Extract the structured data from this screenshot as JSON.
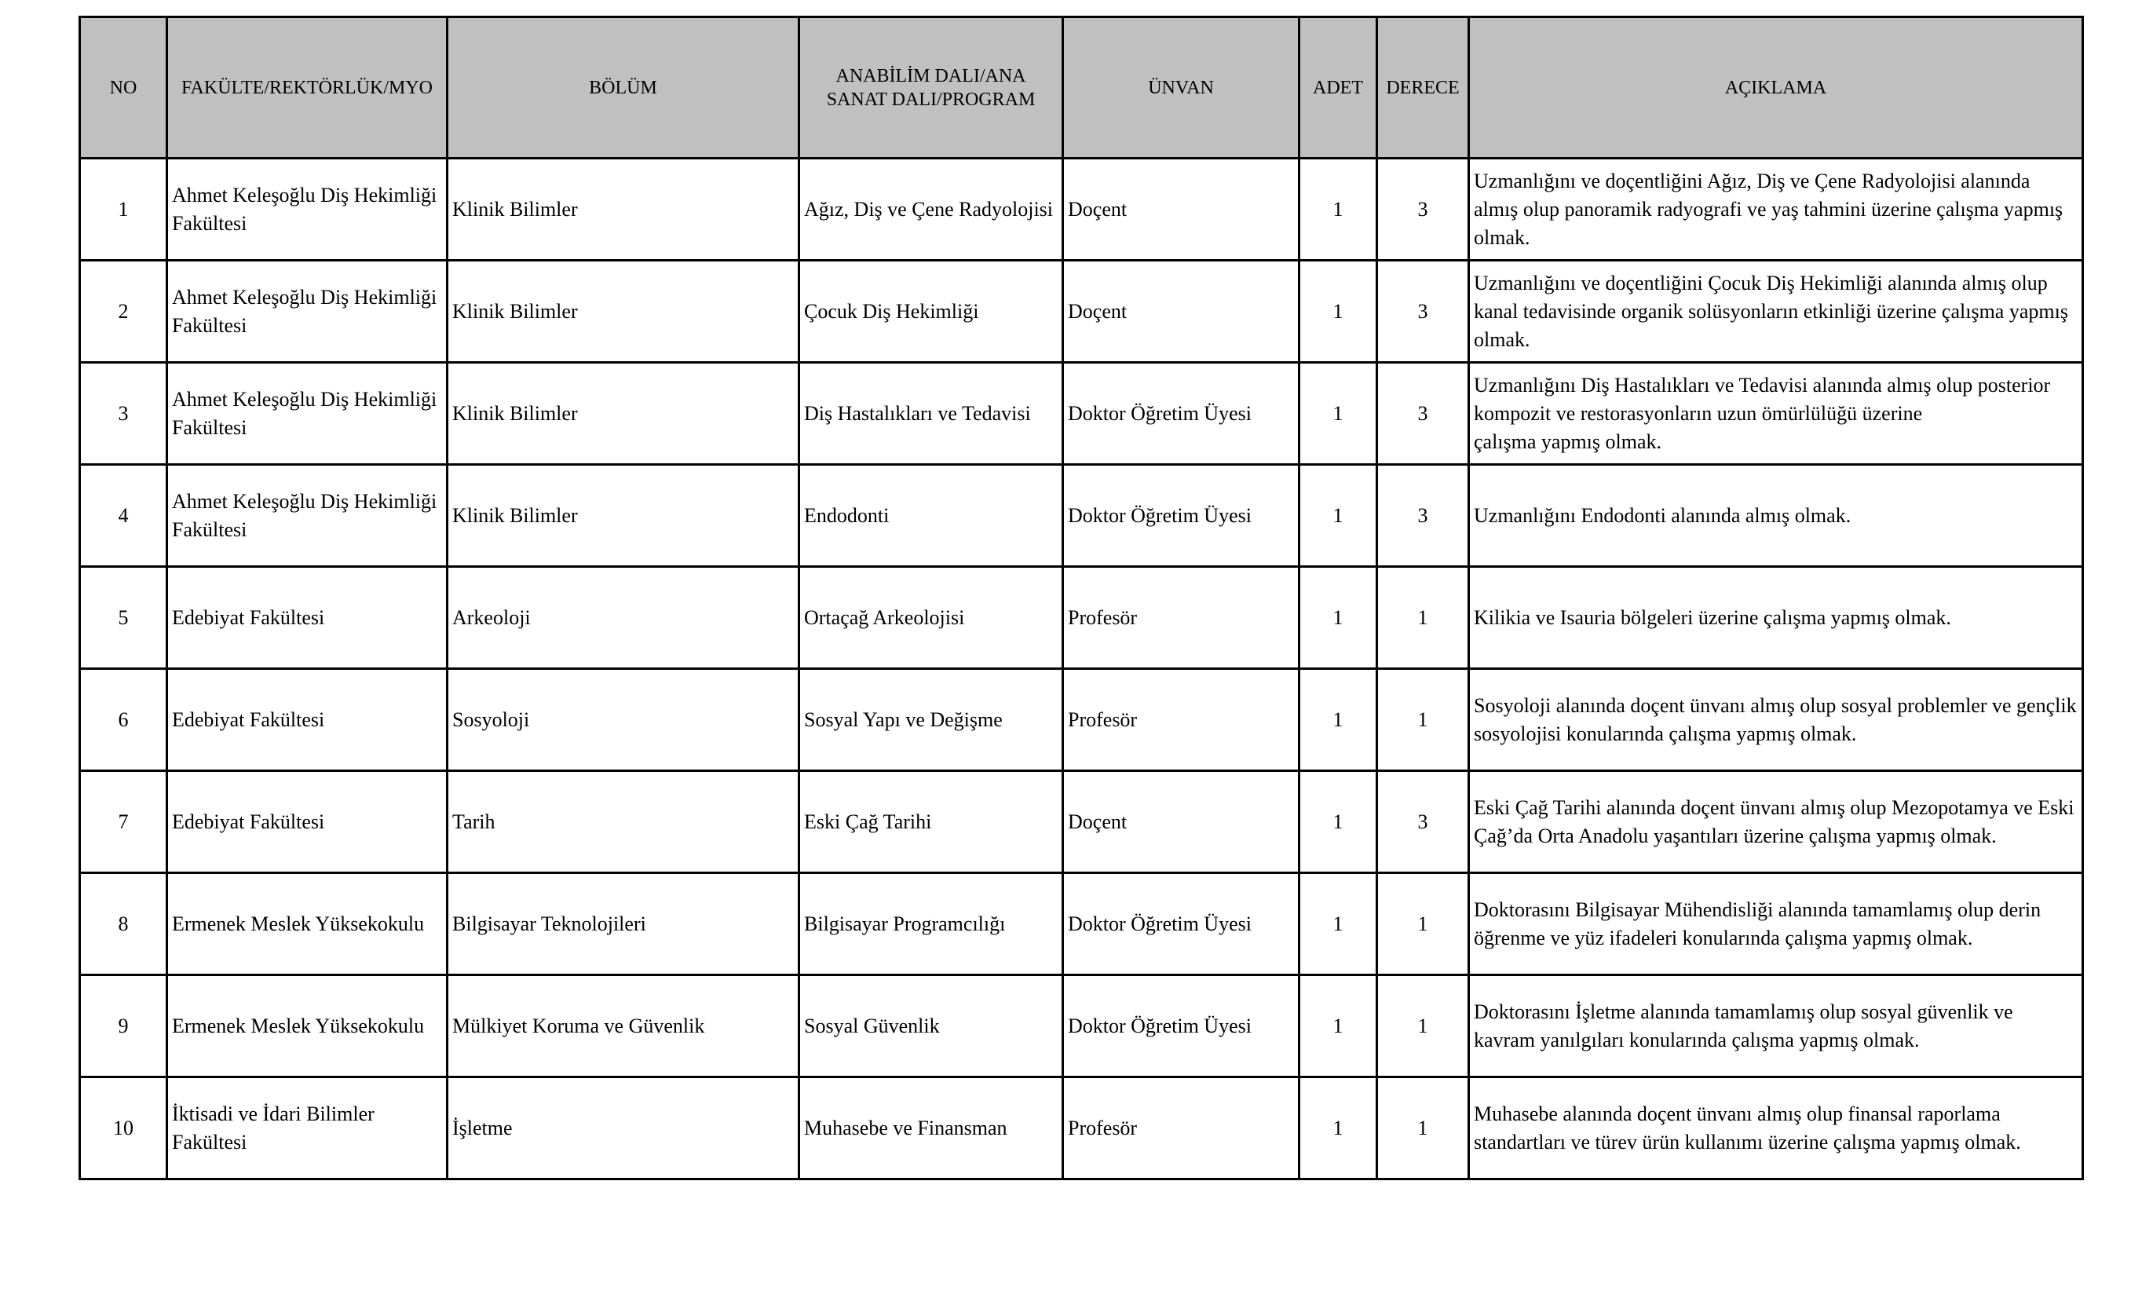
{
  "table": {
    "headers": [
      "NO",
      "FAKÜLTE/REKTÖRLÜK/MYO",
      "BÖLÜM",
      "ANABİLİM DALI/ANA SANAT DALI/PROGRAM",
      "ÜNVAN",
      "ADET",
      "DERECE",
      "AÇIKLAMA"
    ],
    "rows": [
      {
        "no": "1",
        "faculty": "Ahmet Keleşoğlu Diş Hekimliği Fakültesi",
        "department": "Klinik Bilimler",
        "program": "Ağız, Diş ve Çene Radyolojisi",
        "title": "Doçent",
        "count": "1",
        "degree": "3",
        "description": "Uzmanlığını ve doçentliğini Ağız, Diş ve Çene Radyolojisi alanında almış olup panoramik radyografi ve yaş tahmini üzerine çalışma yapmış olmak."
      },
      {
        "no": "2",
        "faculty": "Ahmet Keleşoğlu Diş Hekimliği Fakültesi",
        "department": "Klinik Bilimler",
        "program": "Çocuk Diş Hekimliği",
        "title": "Doçent",
        "count": "1",
        "degree": "3",
        "description": "Uzmanlığını ve doçentliğini Çocuk Diş Hekimliği alanında almış olup kanal tedavisinde organik solüsyonların etkinliği üzerine çalışma yapmış olmak."
      },
      {
        "no": "3",
        "faculty": "Ahmet Keleşoğlu Diş Hekimliği Fakültesi",
        "department": "Klinik Bilimler",
        "program": "Diş Hastalıkları ve Tedavisi",
        "title": "Doktor Öğretim Üyesi",
        "count": "1",
        "degree": "3",
        "description": "Uzmanlığını Diş Hastalıkları ve Tedavisi alanında almış olup posterior kompozit ve restorasyonların uzun ömürlülüğü üzerine\nçalışma yapmış olmak."
      },
      {
        "no": "4",
        "faculty": "Ahmet Keleşoğlu Diş Hekimliği Fakültesi",
        "department": "Klinik Bilimler",
        "program": "Endodonti",
        "title": "Doktor Öğretim Üyesi",
        "count": "1",
        "degree": "3",
        "description": "Uzmanlığını Endodonti alanında almış olmak."
      },
      {
        "no": "5",
        "faculty": "Edebiyat Fakültesi",
        "department": "Arkeoloji",
        "program": "Ortaçağ Arkeolojisi",
        "title": "Profesör",
        "count": "1",
        "degree": "1",
        "description": "Kilikia ve Isauria bölgeleri üzerine çalışma yapmış olmak."
      },
      {
        "no": "6",
        "faculty": "Edebiyat Fakültesi",
        "department": "Sosyoloji",
        "program": "Sosyal Yapı ve Değişme",
        "title": "Profesör",
        "count": "1",
        "degree": "1",
        "description": "Sosyoloji alanında doçent ünvanı almış olup sosyal problemler ve gençlik sosyolojisi konularında çalışma yapmış olmak."
      },
      {
        "no": "7",
        "faculty": "Edebiyat Fakültesi",
        "department": "Tarih",
        "program": "Eski Çağ Tarihi",
        "title": "Doçent",
        "count": "1",
        "degree": "3",
        "description": "Eski Çağ Tarihi alanında doçent ünvanı almış olup Mezopotamya ve Eski Çağ’da Orta Anadolu yaşantıları üzerine çalışma yapmış olmak."
      },
      {
        "no": "8",
        "faculty": "Ermenek Meslek Yüksekokulu",
        "department": "Bilgisayar Teknolojileri",
        "program": "Bilgisayar Programcılığı",
        "title": "Doktor Öğretim Üyesi",
        "count": "1",
        "degree": "1",
        "description": "Doktorasını Bilgisayar Mühendisliği alanında tamamlamış olup derin öğrenme ve yüz ifadeleri konularında çalışma yapmış olmak."
      },
      {
        "no": "9",
        "faculty": "Ermenek Meslek Yüksekokulu",
        "department": "Mülkiyet Koruma ve Güvenlik",
        "program": "Sosyal Güvenlik",
        "title": "Doktor Öğretim Üyesi",
        "count": "1",
        "degree": "1",
        "description": "Doktorasını İşletme alanında tamamlamış olup sosyal güvenlik ve kavram yanılgıları konularında çalışma yapmış olmak."
      },
      {
        "no": "10",
        "faculty": "İktisadi ve İdari Bilimler Fakültesi",
        "department": "İşletme",
        "program": "Muhasebe ve Finansman",
        "title": "Profesör",
        "count": "1",
        "degree": "1",
        "description": "Muhasebe alanında doçent ünvanı almış olup  finansal raporlama standartları ve türev ürün kullanımı üzerine çalışma yapmış olmak."
      }
    ]
  }
}
